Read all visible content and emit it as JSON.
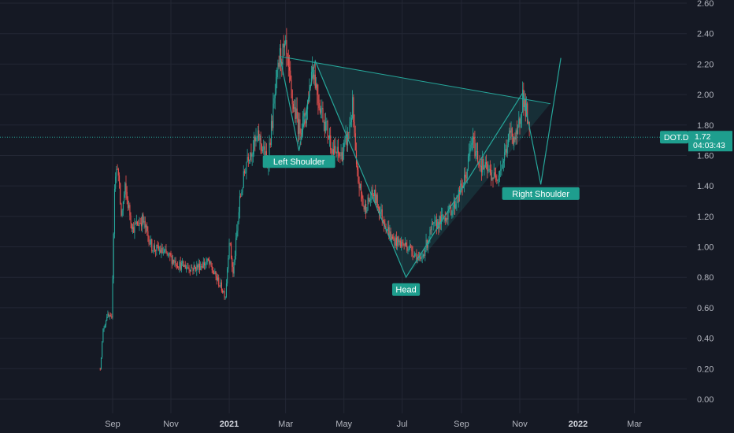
{
  "chart_data": {
    "type": "candlestick",
    "symbol": "DOT.D",
    "last_price": "1.72",
    "countdown": "04:03:43",
    "ylim": [
      -0.05,
      2.62
    ],
    "y_ticks": [
      "0.00",
      "0.20",
      "0.40",
      "0.60",
      "0.80",
      "1.00",
      "1.20",
      "1.40",
      "1.60",
      "1.80",
      "2.00",
      "2.20",
      "2.40",
      "2.60"
    ],
    "x_ticks": [
      {
        "label": "Sep",
        "date": "2020-09-01",
        "bold": false
      },
      {
        "label": "Nov",
        "date": "2020-11-01",
        "bold": false
      },
      {
        "label": "2021",
        "date": "2021-01-01",
        "bold": true
      },
      {
        "label": "Mar",
        "date": "2021-03-01",
        "bold": false
      },
      {
        "label": "May",
        "date": "2021-05-01",
        "bold": false
      },
      {
        "label": "Jul",
        "date": "2021-07-01",
        "bold": false
      },
      {
        "label": "Sep",
        "date": "2021-09-01",
        "bold": false
      },
      {
        "label": "Nov",
        "date": "2021-11-01",
        "bold": false
      },
      {
        "label": "2022",
        "date": "2022-01-01",
        "bold": true
      },
      {
        "label": "Mar",
        "date": "2022-03-01",
        "bold": false
      }
    ],
    "price_anchors": [
      [
        "2020-08-19",
        0.2
      ],
      [
        "2020-08-22",
        0.45
      ],
      [
        "2020-08-26",
        0.55
      ],
      [
        "2020-08-31",
        0.52
      ],
      [
        "2020-09-03",
        1.4
      ],
      [
        "2020-09-06",
        1.55
      ],
      [
        "2020-09-10",
        1.2
      ],
      [
        "2020-09-14",
        1.38
      ],
      [
        "2020-09-22",
        1.12
      ],
      [
        "2020-10-02",
        1.18
      ],
      [
        "2020-10-12",
        1.0
      ],
      [
        "2020-10-25",
        0.96
      ],
      [
        "2020-11-10",
        0.88
      ],
      [
        "2020-11-25",
        0.86
      ],
      [
        "2020-12-10",
        0.9
      ],
      [
        "2020-12-28",
        0.68
      ],
      [
        "2021-01-01",
        1.05
      ],
      [
        "2021-01-05",
        0.82
      ],
      [
        "2021-01-12",
        1.3
      ],
      [
        "2021-01-20",
        1.6
      ],
      [
        "2021-02-01",
        1.72
      ],
      [
        "2021-02-10",
        1.55
      ],
      [
        "2021-02-18",
        2.0
      ],
      [
        "2021-02-23",
        2.25
      ],
      [
        "2021-03-01",
        2.28
      ],
      [
        "2021-03-08",
        1.95
      ],
      [
        "2021-03-15",
        1.78
      ],
      [
        "2021-03-22",
        1.85
      ],
      [
        "2021-03-29",
        2.2
      ],
      [
        "2021-04-05",
        1.95
      ],
      [
        "2021-04-12",
        1.8
      ],
      [
        "2021-04-20",
        1.62
      ],
      [
        "2021-04-28",
        1.6
      ],
      [
        "2021-05-05",
        1.72
      ],
      [
        "2021-05-10",
        1.92
      ],
      [
        "2021-05-14",
        1.5
      ],
      [
        "2021-05-22",
        1.25
      ],
      [
        "2021-06-01",
        1.35
      ],
      [
        "2021-06-10",
        1.2
      ],
      [
        "2021-06-20",
        1.05
      ],
      [
        "2021-07-01",
        1.02
      ],
      [
        "2021-07-08",
        1.0
      ],
      [
        "2021-07-15",
        0.95
      ],
      [
        "2021-07-20",
        0.9
      ],
      [
        "2021-08-01",
        1.12
      ],
      [
        "2021-08-15",
        1.2
      ],
      [
        "2021-08-25",
        1.28
      ],
      [
        "2021-09-05",
        1.45
      ],
      [
        "2021-09-12",
        1.7
      ],
      [
        "2021-09-20",
        1.55
      ],
      [
        "2021-09-28",
        1.5
      ],
      [
        "2021-10-06",
        1.45
      ],
      [
        "2021-10-14",
        1.55
      ],
      [
        "2021-10-22",
        1.75
      ],
      [
        "2021-10-29",
        1.7
      ],
      [
        "2021-11-04",
        2.0
      ],
      [
        "2021-11-08",
        1.88
      ],
      [
        "2021-11-11",
        1.72
      ]
    ],
    "triangle_fill": [
      [
        "2021-02-23",
        2.25
      ],
      [
        "2021-04-01",
        2.22
      ],
      [
        "2021-07-05",
        0.8
      ],
      [
        "2021-12-03",
        1.94
      ]
    ],
    "triangle_top": [
      [
        "2021-02-23",
        2.25
      ],
      [
        "2021-12-03",
        1.94
      ]
    ],
    "pattern_line": [
      [
        "2021-02-23",
        2.25
      ],
      [
        "2021-03-15",
        1.63
      ],
      [
        "2021-04-01",
        2.22
      ],
      [
        "2021-07-05",
        0.8
      ],
      [
        "2021-11-04",
        2.01
      ],
      [
        "2021-11-23",
        1.41
      ],
      [
        "2021-12-14",
        2.24
      ]
    ],
    "annotations": [
      {
        "label": "Left Shoulder",
        "date": "2021-03-15",
        "value": 1.56
      },
      {
        "label": "Head",
        "date": "2021-07-05",
        "value": 0.72
      },
      {
        "label": "Right Shoulder",
        "date": "2021-11-23",
        "value": 1.35
      }
    ],
    "colors": {
      "background": "#151924",
      "grid": "#232734",
      "up": "#26a69a",
      "down": "#ef5350",
      "pattern": "#26a69a",
      "pattern_fill": "#26a69a",
      "label_bg": "#1e9e8e",
      "axis_text": "#b2b5be"
    }
  }
}
